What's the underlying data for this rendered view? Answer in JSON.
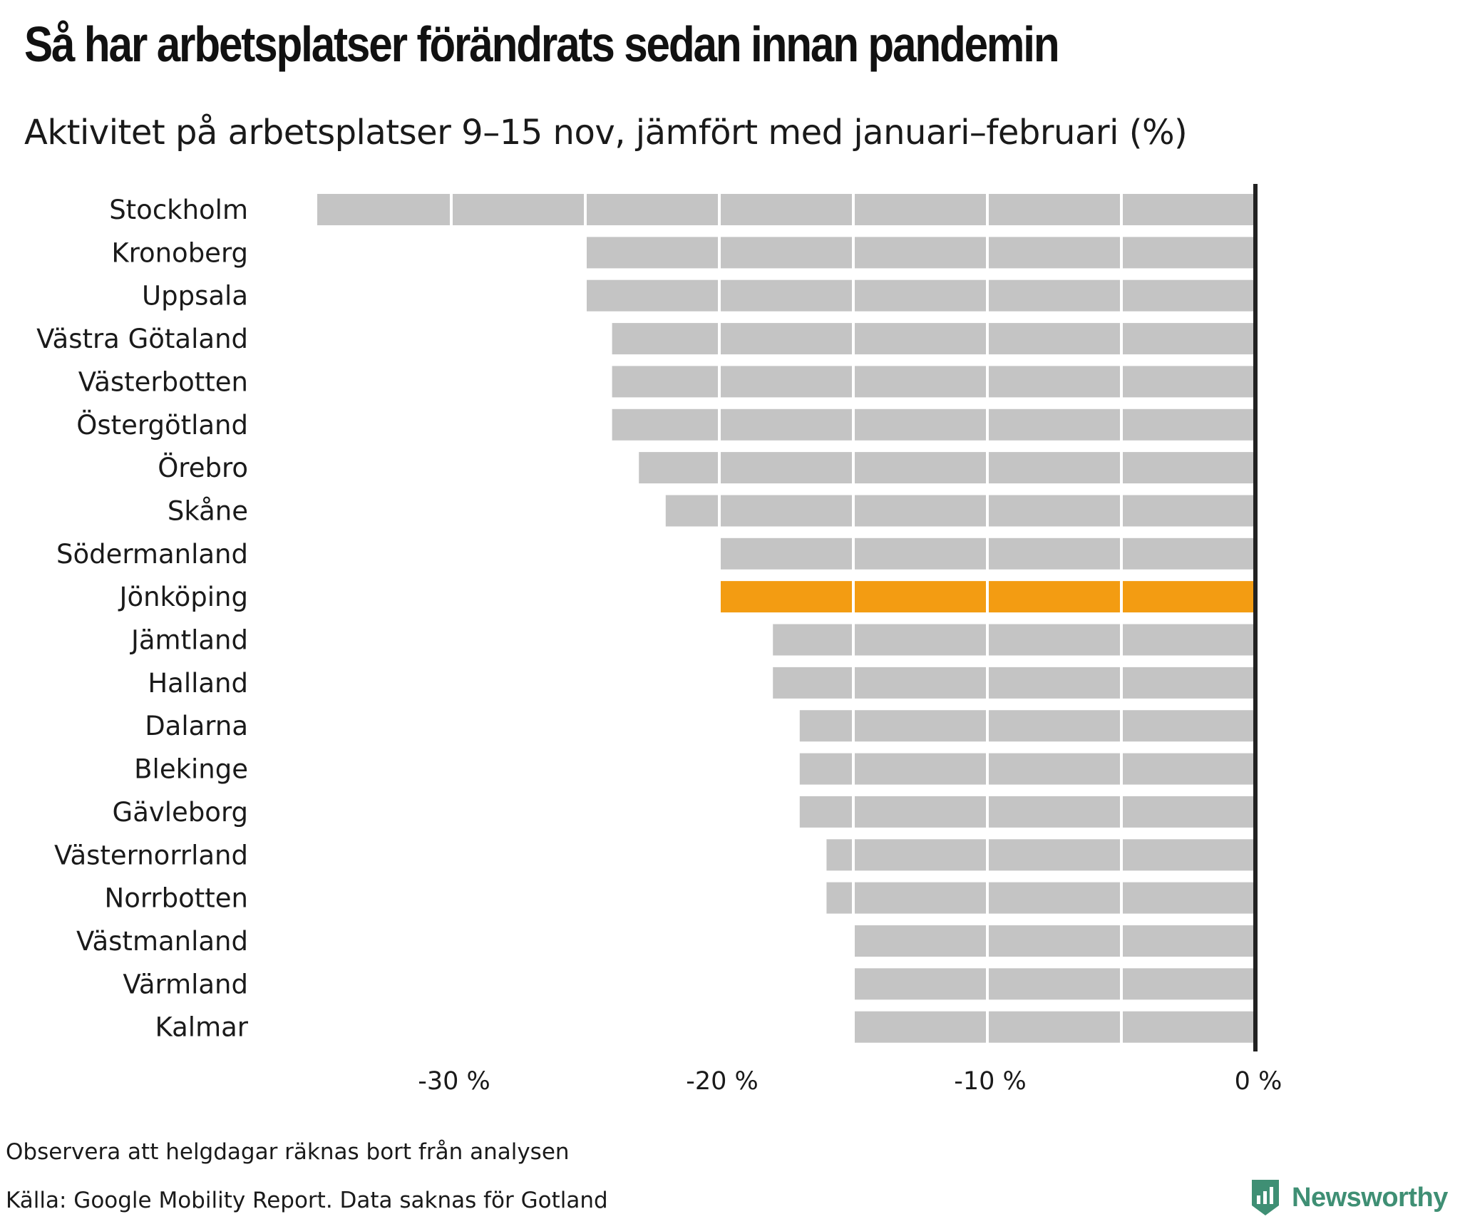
{
  "title": "Så har arbetsplatser förändrats sedan innan pandemin",
  "subtitle": "Aktivitet på arbetsplatser 9–15 nov, jämfört med januari–februari (%)",
  "notes": {
    "holidays": "Observera att helgdagar räknas bort från analysen",
    "source": "Källa: Google Mobility Report. Data saknas för Gotland"
  },
  "brand": {
    "name": "Newsworthy",
    "icon": "newsworthy-chart-badge-icon",
    "color": "#3f8f74"
  },
  "colors": {
    "bar": "#c4c4c4",
    "highlight": "#f39c12",
    "gridline": "#ffffff",
    "zero_line": "#222222"
  },
  "chart_data": {
    "type": "bar",
    "orientation": "horizontal",
    "title": "Så har arbetsplatser förändrats sedan innan pandemin",
    "subtitle": "Aktivitet på arbetsplatser 9–15 nov, jämfört med januari–februari (%)",
    "xlabel": "",
    "ylabel": "",
    "xlim": [
      -35,
      0
    ],
    "xticks": [
      -30,
      -20,
      -10,
      0
    ],
    "xtick_labels": [
      "-30 %",
      "-20 %",
      "-10 %",
      "0 %"
    ],
    "gridlines_every": 5,
    "highlight": "Jönköping",
    "categories": [
      "Stockholm",
      "Kronoberg",
      "Uppsala",
      "Västra Götaland",
      "Västerbotten",
      "Östergötland",
      "Örebro",
      "Skåne",
      "Södermanland",
      "Jönköping",
      "Jämtland",
      "Halland",
      "Dalarna",
      "Blekinge",
      "Gävleborg",
      "Västernorrland",
      "Norrbotten",
      "Västmanland",
      "Värmland",
      "Kalmar"
    ],
    "values": [
      -35,
      -25,
      -25,
      -24,
      -24,
      -24,
      -23,
      -22,
      -20,
      -20,
      -18,
      -18,
      -17,
      -17,
      -17,
      -16,
      -16,
      -15,
      -15,
      -15
    ]
  }
}
